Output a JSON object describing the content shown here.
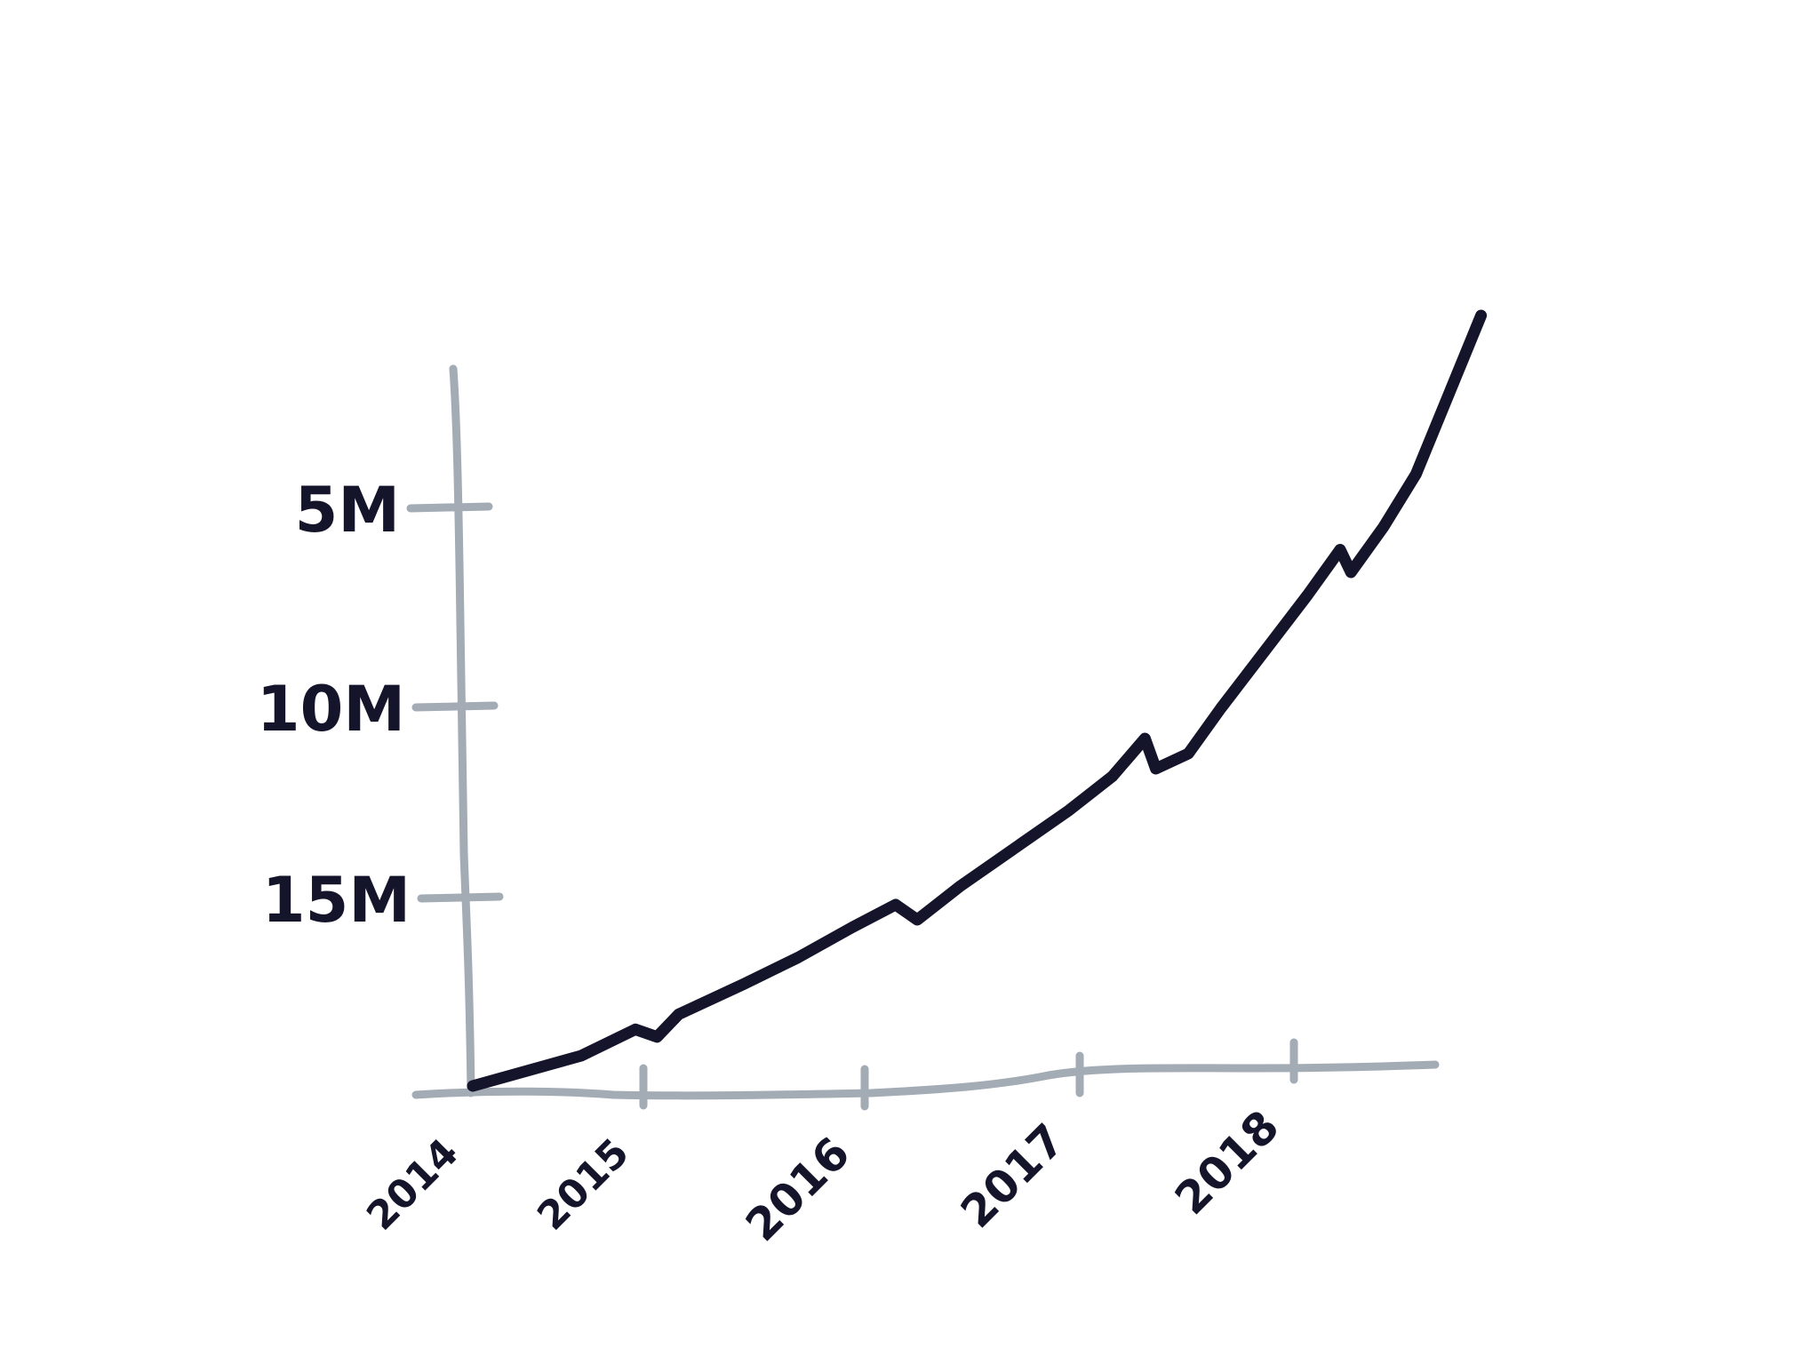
{
  "chart_data": {
    "type": "line",
    "title": "",
    "xlabel": "",
    "ylabel": "",
    "x_ticks": [
      "2014",
      "2015",
      "2016",
      "2017",
      "2018"
    ],
    "y_ticks": [
      "5M",
      "10M",
      "15M"
    ],
    "y_axis_note": "tick labels printed top-to-bottom as 5M, 10M, 15M",
    "series": [
      {
        "values": [
          {
            "x": 2014.0,
            "y": 0.0
          },
          {
            "x": 2014.25,
            "y": 0.4
          },
          {
            "x": 2014.5,
            "y": 0.8
          },
          {
            "x": 2014.75,
            "y": 1.5
          },
          {
            "x": 2014.85,
            "y": 1.3
          },
          {
            "x": 2014.95,
            "y": 1.9
          },
          {
            "x": 2015.25,
            "y": 2.7
          },
          {
            "x": 2015.5,
            "y": 3.4
          },
          {
            "x": 2015.75,
            "y": 4.2
          },
          {
            "x": 2015.95,
            "y": 4.8
          },
          {
            "x": 2016.05,
            "y": 4.4
          },
          {
            "x": 2016.25,
            "y": 5.3
          },
          {
            "x": 2016.5,
            "y": 6.3
          },
          {
            "x": 2016.75,
            "y": 7.3
          },
          {
            "x": 2016.95,
            "y": 8.2
          },
          {
            "x": 2017.1,
            "y": 9.2
          },
          {
            "x": 2017.15,
            "y": 8.4
          },
          {
            "x": 2017.3,
            "y": 8.8
          },
          {
            "x": 2017.45,
            "y": 10.0
          },
          {
            "x": 2017.65,
            "y": 11.5
          },
          {
            "x": 2017.85,
            "y": 13.0
          },
          {
            "x": 2018.0,
            "y": 14.2
          },
          {
            "x": 2018.05,
            "y": 13.6
          },
          {
            "x": 2018.2,
            "y": 14.8
          },
          {
            "x": 2018.35,
            "y": 16.2
          },
          {
            "x": 2018.5,
            "y": 18.3
          },
          {
            "x": 2018.65,
            "y": 20.4
          }
        ]
      }
    ],
    "xlim": [
      2014,
      2018.65
    ],
    "ylim": [
      0,
      20.4
    ],
    "grid": false,
    "legend": "none"
  },
  "colors": {
    "axis": "#a3abb5",
    "line": "#14142b",
    "labels": "#14142b",
    "background": "#ffffff"
  }
}
